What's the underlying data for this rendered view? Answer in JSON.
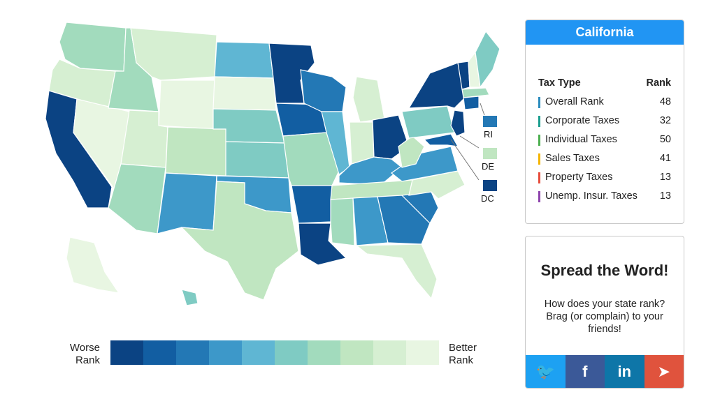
{
  "state_panel": {
    "title": "California",
    "col_type": "Tax Type",
    "col_rank": "Rank",
    "rows": [
      {
        "label": "Overall Rank",
        "rank": "48",
        "color": "#2b8cbe"
      },
      {
        "label": "Corporate Taxes",
        "rank": "32",
        "color": "#1b9e8f"
      },
      {
        "label": "Individual Taxes",
        "rank": "50",
        "color": "#4caf50"
      },
      {
        "label": "Sales Taxes",
        "rank": "41",
        "color": "#f4b400"
      },
      {
        "label": "Property Taxes",
        "rank": "13",
        "color": "#e74c3c"
      },
      {
        "label": "Unemp. Insur. Taxes",
        "rank": "13",
        "color": "#8e44ad"
      }
    ]
  },
  "share": {
    "title": "Spread the Word!",
    "text": "How does your state rank? Brag (or complain) to your friends!",
    "buttons": [
      {
        "icon": "twitter-icon",
        "glyph": "🐦",
        "color": "#1da1f2"
      },
      {
        "icon": "facebook-icon",
        "glyph": "f",
        "color": "#3b5998"
      },
      {
        "icon": "linkedin-icon",
        "glyph": "in",
        "color": "#0e76a8"
      },
      {
        "icon": "telegram-icon",
        "glyph": "➤",
        "color": "#e0533d"
      }
    ]
  },
  "legend": {
    "left_label_1": "Worse",
    "left_label_2": "Rank",
    "right_label_1": "Better",
    "right_label_2": "Rank",
    "colors": [
      "#0b4383",
      "#125ea2",
      "#2378b5",
      "#3d98c9",
      "#5fb6d3",
      "#7fcbc3",
      "#a2dbbd",
      "#c0e6c1",
      "#d6efd2",
      "#e8f6e2"
    ]
  },
  "map": {
    "small_states": [
      {
        "abbr": "RI",
        "color": "#2378b5"
      },
      {
        "abbr": "DE",
        "color": "#c0e6c1"
      },
      {
        "abbr": "DC",
        "color": "#0b4383"
      }
    ],
    "states": [
      {
        "abbr": "WA",
        "tier": 6
      },
      {
        "abbr": "OR",
        "tier": 8
      },
      {
        "abbr": "CA",
        "tier": 0
      },
      {
        "abbr": "NV",
        "tier": 9
      },
      {
        "abbr": "ID",
        "tier": 6
      },
      {
        "abbr": "MT",
        "tier": 8
      },
      {
        "abbr": "WY",
        "tier": 9
      },
      {
        "abbr": "UT",
        "tier": 8
      },
      {
        "abbr": "AZ",
        "tier": 6
      },
      {
        "abbr": "CO",
        "tier": 7
      },
      {
        "abbr": "NM",
        "tier": 3
      },
      {
        "abbr": "ND",
        "tier": 4
      },
      {
        "abbr": "SD",
        "tier": 9
      },
      {
        "abbr": "NE",
        "tier": 5
      },
      {
        "abbr": "KS",
        "tier": 5
      },
      {
        "abbr": "OK",
        "tier": 3
      },
      {
        "abbr": "TX",
        "tier": 7
      },
      {
        "abbr": "MN",
        "tier": 0
      },
      {
        "abbr": "IA",
        "tier": 1
      },
      {
        "abbr": "MO",
        "tier": 6
      },
      {
        "abbr": "AR",
        "tier": 1
      },
      {
        "abbr": "LA",
        "tier": 0
      },
      {
        "abbr": "WI",
        "tier": 2
      },
      {
        "abbr": "IL",
        "tier": 4
      },
      {
        "abbr": "MI",
        "tier": 8
      },
      {
        "abbr": "IN",
        "tier": 8
      },
      {
        "abbr": "OH",
        "tier": 0
      },
      {
        "abbr": "KY",
        "tier": 3
      },
      {
        "abbr": "TN",
        "tier": 7
      },
      {
        "abbr": "MS",
        "tier": 6
      },
      {
        "abbr": "AL",
        "tier": 3
      },
      {
        "abbr": "GA",
        "tier": 2
      },
      {
        "abbr": "FL",
        "tier": 8
      },
      {
        "abbr": "SC",
        "tier": 2
      },
      {
        "abbr": "NC",
        "tier": 8
      },
      {
        "abbr": "VA",
        "tier": 3
      },
      {
        "abbr": "WV",
        "tier": 7
      },
      {
        "abbr": "PA",
        "tier": 5
      },
      {
        "abbr": "NY",
        "tier": 0
      },
      {
        "abbr": "VT",
        "tier": 0
      },
      {
        "abbr": "NH",
        "tier": 9
      },
      {
        "abbr": "ME",
        "tier": 5
      },
      {
        "abbr": "MA",
        "tier": 6
      },
      {
        "abbr": "CT",
        "tier": 1
      },
      {
        "abbr": "NJ",
        "tier": 0
      },
      {
        "abbr": "MD",
        "tier": 1
      },
      {
        "abbr": "AK",
        "tier": 9
      },
      {
        "abbr": "HI",
        "tier": 5
      }
    ]
  }
}
